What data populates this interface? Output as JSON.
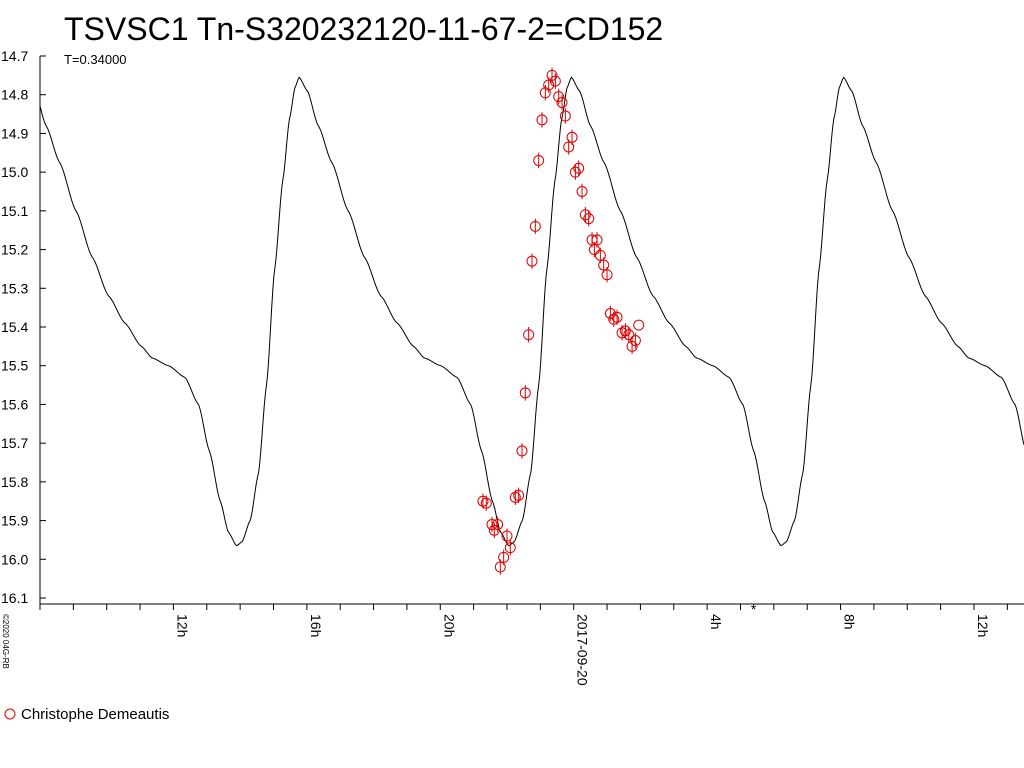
{
  "chart_data": {
    "type": "scatter",
    "title": "TSVSC1 Tn-S320232120-11-67-2=CD152",
    "subtitle": "T=0.34000",
    "copyright": "©2020 04G-RB",
    "y_axis": {
      "inverted": true,
      "ylim": [
        14.7,
        16.1
      ],
      "ticks": [
        "14.7",
        "14.8",
        "14.9",
        "15.0",
        "15.1",
        "15.2",
        "15.3",
        "15.4",
        "15.5",
        "15.6",
        "15.7",
        "15.8",
        "15.9",
        "16.0",
        "16.1"
      ]
    },
    "x_axis": {
      "unit": "hours relative to 2017-09-20 00:00",
      "xlim": [
        -16,
        13.5
      ],
      "minor_tick_step_hours": 1,
      "labels": [
        {
          "x": -12,
          "text": "12h"
        },
        {
          "x": -8,
          "text": "16h"
        },
        {
          "x": -4,
          "text": "20h"
        },
        {
          "x": 0,
          "text": "2017-09-20"
        },
        {
          "x": 4,
          "text": "4h"
        },
        {
          "x": 8,
          "text": "8h"
        },
        {
          "x": 12,
          "text": "12h"
        }
      ],
      "marker": {
        "x": 5.4,
        "text": "*"
      }
    },
    "model_curve": {
      "period_hours": 8.16,
      "phase_points": [
        [
          0.0,
          14.755
        ],
        [
          0.03,
          14.79
        ],
        [
          0.07,
          14.88
        ],
        [
          0.12,
          14.975
        ],
        [
          0.18,
          15.1
        ],
        [
          0.24,
          15.22
        ],
        [
          0.3,
          15.32
        ],
        [
          0.36,
          15.39
        ],
        [
          0.42,
          15.45
        ],
        [
          0.46,
          15.48
        ],
        [
          0.52,
          15.5
        ],
        [
          0.58,
          15.53
        ],
        [
          0.63,
          15.6
        ],
        [
          0.67,
          15.72
        ],
        [
          0.71,
          15.85
        ],
        [
          0.74,
          15.93
        ],
        [
          0.77,
          15.965
        ],
        [
          0.79,
          15.955
        ],
        [
          0.82,
          15.9
        ],
        [
          0.85,
          15.78
        ],
        [
          0.88,
          15.55
        ],
        [
          0.91,
          15.25
        ],
        [
          0.94,
          15.02
        ],
        [
          0.965,
          14.86
        ],
        [
          0.985,
          14.78
        ],
        [
          1.0,
          14.755
        ]
      ],
      "reference_peak_x": -0.07
    },
    "series": [
      {
        "name": "Christophe Demeautis",
        "color": "#e00000",
        "marker": "circle",
        "points": [
          [
            -2.72,
            15.85,
            0.02
          ],
          [
            -2.62,
            15.855,
            0.02
          ],
          [
            -2.45,
            15.91,
            0.02
          ],
          [
            -2.38,
            15.925,
            0.02
          ],
          [
            -2.28,
            15.91,
            0.02
          ],
          [
            -2.2,
            16.02,
            0.02
          ],
          [
            -2.1,
            15.995,
            0.02
          ],
          [
            -2.0,
            15.94,
            0.02
          ],
          [
            -1.9,
            15.97,
            0.02
          ],
          [
            -1.75,
            15.84,
            0.02
          ],
          [
            -1.65,
            15.835,
            0.02
          ],
          [
            -1.55,
            15.72,
            0.02
          ],
          [
            -1.45,
            15.57,
            0.02
          ],
          [
            -1.35,
            15.42,
            0.02
          ],
          [
            -1.25,
            15.23,
            0.02
          ],
          [
            -1.15,
            15.14,
            0.02
          ],
          [
            -1.05,
            14.97,
            0.02
          ],
          [
            -0.95,
            14.865,
            0.02
          ],
          [
            -0.85,
            14.795,
            0.02
          ],
          [
            -0.75,
            14.775,
            0.02
          ],
          [
            -0.65,
            14.75,
            0.02
          ],
          [
            -0.55,
            14.765,
            0.02
          ],
          [
            -0.45,
            14.805,
            0.02
          ],
          [
            -0.35,
            14.82,
            0.02
          ],
          [
            -0.25,
            14.855,
            0.02
          ],
          [
            -0.15,
            14.935,
            0.02
          ],
          [
            -0.05,
            14.91,
            0.02
          ],
          [
            0.05,
            15.0,
            0.02
          ],
          [
            0.15,
            14.99,
            0.02
          ],
          [
            0.25,
            15.05,
            0.02
          ],
          [
            0.35,
            15.11,
            0.02
          ],
          [
            0.45,
            15.12,
            0.02
          ],
          [
            0.55,
            15.175,
            0.02
          ],
          [
            0.62,
            15.2,
            0.02
          ],
          [
            0.7,
            15.175,
            0.02
          ],
          [
            0.8,
            15.215,
            0.02
          ],
          [
            0.9,
            15.24,
            0.02
          ],
          [
            1.0,
            15.265,
            0.02
          ],
          [
            1.1,
            15.365,
            0.02
          ],
          [
            1.2,
            15.38,
            0.02
          ],
          [
            1.3,
            15.375,
            0.02
          ],
          [
            1.45,
            15.415,
            0.02
          ],
          [
            1.55,
            15.41,
            0.02
          ],
          [
            1.65,
            15.42,
            0.02
          ],
          [
            1.75,
            15.45,
            0.02
          ],
          [
            1.85,
            15.435,
            0.02
          ],
          [
            1.95,
            15.395,
            0.0
          ]
        ]
      }
    ],
    "legend": {
      "position": "bottom-left",
      "entries": [
        "Christophe Demeautis"
      ]
    }
  }
}
